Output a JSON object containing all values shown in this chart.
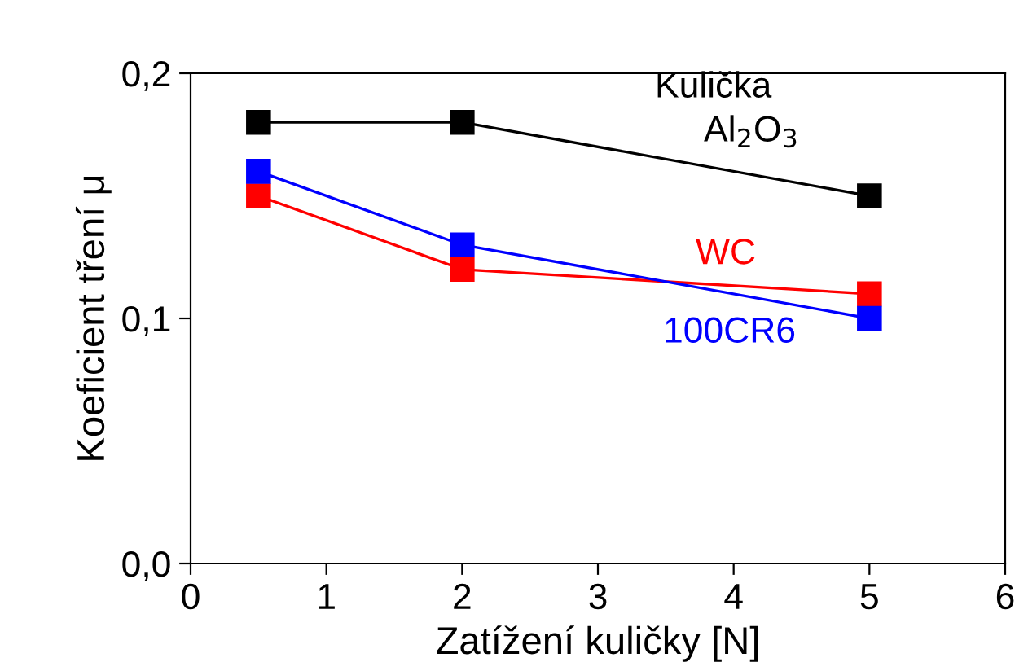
{
  "chart_data": {
    "type": "line",
    "xlabel": "Zatížení kuličky [N]",
    "ylabel": "Koeficient tření μ",
    "legend_title": "Kulička",
    "x": [
      0.5,
      2,
      5
    ],
    "marker": "square",
    "line_style": "solid",
    "grid": false,
    "legend": "top right",
    "series": [
      {
        "name": "Al$_{2}$O$_{3}$",
        "color": "#000000",
        "values": [
          0.18,
          0.18,
          0.15
        ]
      },
      {
        "name": "WC",
        "color": "#ff0000",
        "values": [
          0.15,
          0.12,
          0.11
        ]
      },
      {
        "name": "100CR6",
        "color": "#0000ff",
        "values": [
          0.16,
          0.13,
          0.1
        ]
      }
    ],
    "xlim": [
      0,
      6
    ],
    "xticks": [
      0,
      1,
      2,
      3,
      4,
      5,
      6
    ],
    "ylim": [
      0,
      0.2
    ],
    "yticks": [
      {
        "value": 0,
        "label": "0,0"
      },
      {
        "value": 0.1,
        "label": "0,1"
      },
      {
        "value": 0.2,
        "label": "0,2"
      }
    ]
  }
}
